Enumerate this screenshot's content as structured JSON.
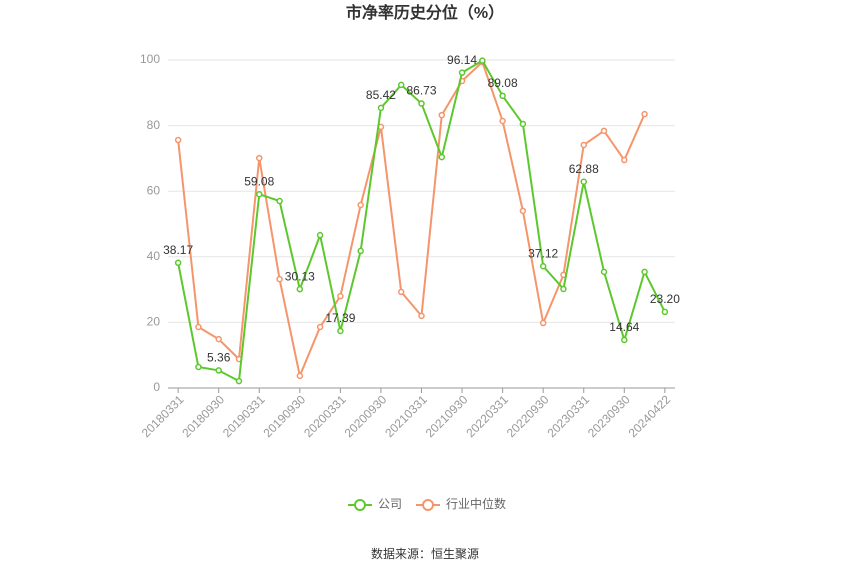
{
  "chart_data": {
    "type": "line",
    "title": "市净率历史分位（%）",
    "source": "数据来源：恒生聚源",
    "categories": [
      "20180331",
      null,
      "20180930",
      null,
      "20190331",
      null,
      "20190930",
      null,
      "20200331",
      null,
      "20200930",
      null,
      "20210331",
      null,
      "20210930",
      null,
      "20220331",
      null,
      "20220930",
      null,
      "20230331",
      null,
      "20230930",
      null,
      "20240422"
    ],
    "series": [
      {
        "name": "公司",
        "color": "#5cc82e",
        "values": [
          38.17,
          6.4,
          5.36,
          2.1,
          59.08,
          57.0,
          30.13,
          46.6,
          17.39,
          41.8,
          85.42,
          92.4,
          86.73,
          70.4,
          96.14,
          99.8,
          89.08,
          80.5,
          37.12,
          30.2,
          62.88,
          35.4,
          14.64,
          35.4,
          23.2
        ],
        "value_labels": [
          "38.17",
          null,
          "5.36",
          null,
          "59.08",
          null,
          "30.13",
          null,
          "17.39",
          null,
          "85.42",
          null,
          "86.73",
          null,
          "96.14",
          null,
          "89.08",
          null,
          "37.12",
          null,
          "62.88",
          null,
          "14.64",
          null,
          "23.20"
        ]
      },
      {
        "name": "行业中位数",
        "color": "#f5956b",
        "values": [
          75.6,
          18.6,
          14.9,
          8.8,
          70.1,
          33.2,
          3.7,
          18.6,
          28.0,
          55.8,
          79.6,
          29.3,
          22.0,
          83.2,
          93.6,
          99.4,
          81.4,
          54.0,
          19.8,
          34.5,
          74.1,
          78.4,
          69.5,
          83.5,
          null
        ]
      }
    ],
    "ylim": [
      0,
      100
    ],
    "yticks": [
      0,
      20,
      40,
      60,
      80,
      100
    ],
    "grid": true
  }
}
